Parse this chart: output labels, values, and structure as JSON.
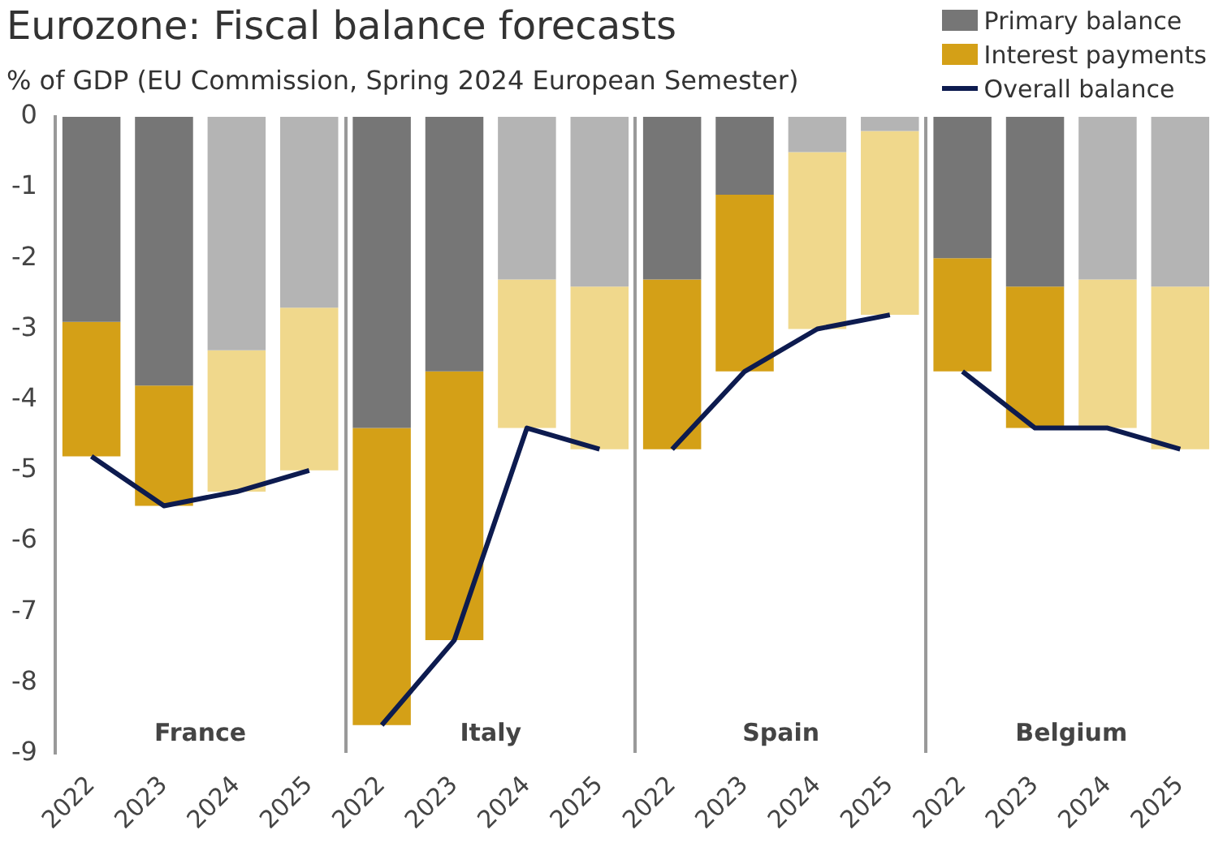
{
  "chart_data": {
    "type": "bar",
    "title": "Eurozone: Fiscal balance forecasts",
    "subtitle": "% of GDP (EU Commission, Spring 2024 European Semester)",
    "categories": [
      "2022",
      "2023",
      "2024",
      "2025",
      "2022",
      "2023",
      "2024",
      "2025",
      "2022",
      "2023",
      "2024",
      "2025",
      "2022",
      "2023",
      "2024",
      "2025"
    ],
    "annotations": [
      "France",
      "Italy",
      "Spain",
      "Belgium"
    ],
    "stacked": true,
    "series": [
      {
        "name": "Primary balance",
        "color": "#767676",
        "colors": [
          "#767676",
          "#767676",
          "#b4b4b4",
          "#b4b4b4",
          "#767676",
          "#767676",
          "#b4b4b4",
          "#b4b4b4",
          "#767676",
          "#767676",
          "#b4b4b4",
          "#b4b4b4",
          "#767676",
          "#767676",
          "#b4b4b4",
          "#b4b4b4"
        ],
        "values": [
          -2.9,
          -3.8,
          -3.3,
          -2.7,
          -4.4,
          -3.6,
          -2.3,
          -2.4,
          -2.3,
          -1.1,
          -0.5,
          -0.2,
          -2.0,
          -2.4,
          -2.3,
          -2.4
        ]
      },
      {
        "name": "Interest payments",
        "color": "#d4a017",
        "colors": [
          "#d4a017",
          "#d4a017",
          "#f0d88c",
          "#f0d88c",
          "#d4a017",
          "#d4a017",
          "#f0d88c",
          "#f0d88c",
          "#d4a017",
          "#d4a017",
          "#f0d88c",
          "#f0d88c",
          "#d4a017",
          "#d4a017",
          "#f0d88c",
          "#f0d88c"
        ],
        "values": [
          -1.9,
          -1.7,
          -2.0,
          -2.3,
          -4.2,
          -3.8,
          -2.1,
          -2.3,
          -2.4,
          -2.5,
          -2.5,
          -2.6,
          -1.6,
          -2.0,
          -2.1,
          -2.3
        ]
      },
      {
        "name": "Overall balance",
        "type": "line",
        "color": "#0d1b4f",
        "values": [
          -4.8,
          -5.5,
          -5.3,
          -5.0,
          -8.6,
          -7.4,
          -4.4,
          -4.7,
          -4.7,
          -3.6,
          -3.0,
          -2.8,
          -3.6,
          -4.4,
          -4.4,
          -4.7
        ]
      }
    ],
    "ylim": [
      -9,
      0
    ],
    "yticks": [
      -9,
      -8,
      -7,
      -6,
      -5,
      -4,
      -3,
      -2,
      -1,
      0
    ],
    "legend": "top right",
    "marker": "none"
  }
}
